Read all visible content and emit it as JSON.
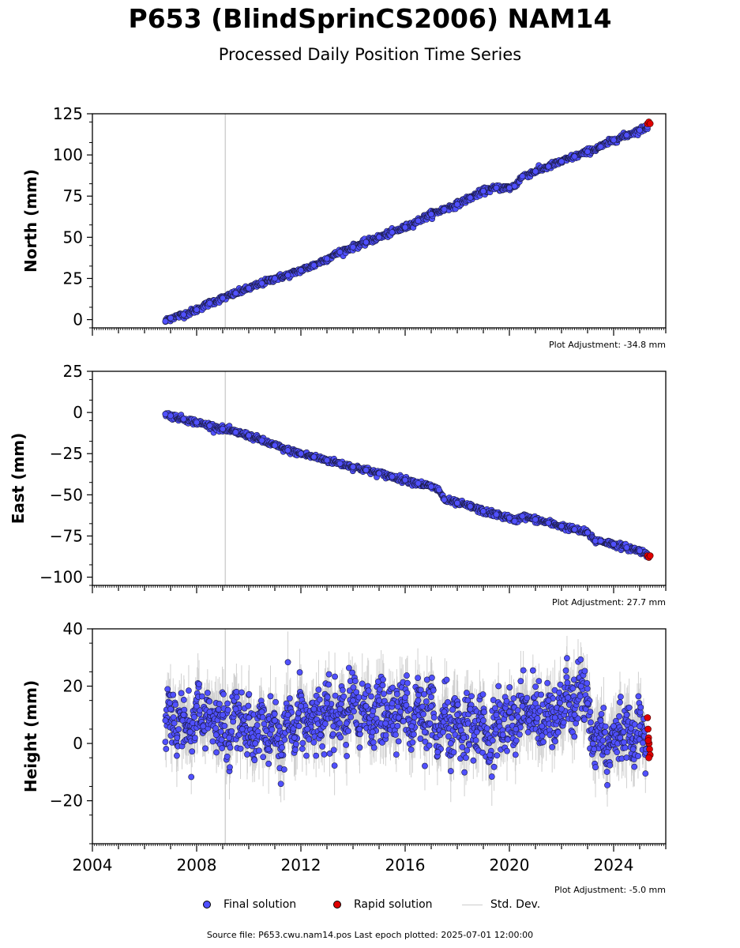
{
  "title": "P653 (BlindSprinCS2006) NAM14",
  "subtitle": "Processed Daily Position Time Series",
  "legend": {
    "final_label": "Final solution",
    "rapid_label": "Rapid solution",
    "std_label": "Std. Dev.",
    "final_color": "#5050ff",
    "rapid_color": "#e00000",
    "std_color": "#cccccc"
  },
  "source_text": "Source file: P653.cwu.nam14.pos  Last epoch plotted: 2025-07-01 12:00:00",
  "chart_data": [
    {
      "type": "scatter",
      "ylabel": "North (mm)",
      "xlim": [
        2004,
        2026
      ],
      "ylim": [
        -5,
        125
      ],
      "yticks": [
        0,
        25,
        50,
        75,
        100,
        125
      ],
      "adjustment": "Plot Adjustment: -34.8 mm",
      "vline_x": 2009.1,
      "series": [
        {
          "name": "Final solution",
          "x": [
            2006.8,
            2007.0,
            2007.5,
            2008.0,
            2008.5,
            2009.0,
            2009.5,
            2010.0,
            2010.5,
            2011.0,
            2011.5,
            2012.0,
            2012.5,
            2013.0,
            2013.5,
            2014.0,
            2014.5,
            2015.0,
            2015.5,
            2016.0,
            2016.5,
            2017.0,
            2017.5,
            2018.0,
            2018.5,
            2019.0,
            2019.5,
            2020.0,
            2020.2,
            2020.5,
            2021.0,
            2021.5,
            2022.0,
            2022.5,
            2023.0,
            2023.5,
            2024.0,
            2024.5,
            2025.0,
            2025.3
          ],
          "y": [
            -1,
            1,
            3,
            6,
            10,
            13,
            16,
            19,
            22,
            25,
            27,
            30,
            33,
            37,
            41,
            44,
            47,
            50,
            53,
            56,
            60,
            64,
            67,
            70,
            74,
            78,
            80,
            80,
            81,
            87,
            90,
            93,
            96,
            99,
            102,
            105,
            109,
            112,
            115,
            117
          ]
        },
        {
          "name": "Rapid solution",
          "x": [
            2025.3,
            2025.35,
            2025.4
          ],
          "y": [
            119,
            120,
            119
          ]
        }
      ]
    },
    {
      "type": "scatter",
      "ylabel": "East (mm)",
      "xlim": [
        2004,
        2026
      ],
      "ylim": [
        -105,
        25
      ],
      "yticks": [
        -100,
        -75,
        -50,
        -25,
        0,
        25
      ],
      "adjustment": "Plot Adjustment: 27.7 mm",
      "vline_x": 2009.1,
      "series": [
        {
          "name": "Final solution",
          "x": [
            2006.8,
            2007.0,
            2007.5,
            2008.0,
            2008.5,
            2009.0,
            2009.5,
            2010.0,
            2010.5,
            2011.0,
            2011.5,
            2012.0,
            2012.5,
            2013.0,
            2013.5,
            2014.0,
            2014.5,
            2015.0,
            2015.5,
            2016.0,
            2016.5,
            2017.0,
            2017.3,
            2017.5,
            2018.0,
            2018.5,
            2019.0,
            2019.5,
            2020.0,
            2020.2,
            2020.5,
            2021.0,
            2021.5,
            2022.0,
            2022.5,
            2023.0,
            2023.3,
            2023.5,
            2024.0,
            2024.5,
            2025.0,
            2025.3
          ],
          "y": [
            -1,
            -2,
            -4,
            -6,
            -8,
            -10,
            -12,
            -14,
            -17,
            -20,
            -23,
            -25,
            -27,
            -29,
            -31,
            -33,
            -35,
            -37,
            -39,
            -41,
            -43,
            -45,
            -47,
            -53,
            -55,
            -57,
            -60,
            -62,
            -64,
            -66,
            -63,
            -65,
            -67,
            -69,
            -71,
            -73,
            -78,
            -78,
            -80,
            -82,
            -84,
            -86
          ]
        },
        {
          "name": "Rapid solution",
          "x": [
            2025.3,
            2025.35,
            2025.4
          ],
          "y": [
            -87,
            -88,
            -87
          ]
        }
      ]
    },
    {
      "type": "scatter",
      "ylabel": "Height (mm)",
      "xlim": [
        2004,
        2026
      ],
      "ylim": [
        -35,
        40
      ],
      "yticks": [
        -20,
        0,
        20,
        40
      ],
      "xticks": [
        2004,
        2008,
        2012,
        2016,
        2020,
        2024
      ],
      "adjustment": "Plot Adjustment: -5.0 mm",
      "vline_x": 2009.1,
      "series": [
        {
          "name": "Final solution",
          "x": [
            2006.8,
            2007.0,
            2007.25,
            2007.5,
            2007.75,
            2008.0,
            2008.25,
            2008.5,
            2008.75,
            2009.0,
            2009.25,
            2009.5,
            2009.75,
            2010.0,
            2010.25,
            2010.5,
            2010.75,
            2011.0,
            2011.25,
            2011.5,
            2011.75,
            2012.0,
            2012.25,
            2012.5,
            2012.75,
            2013.0,
            2013.25,
            2013.5,
            2013.75,
            2014.0,
            2014.25,
            2014.5,
            2014.75,
            2015.0,
            2015.25,
            2015.5,
            2015.75,
            2016.0,
            2016.25,
            2016.5,
            2016.75,
            2017.0,
            2017.25,
            2017.5,
            2017.75,
            2018.0,
            2018.25,
            2018.5,
            2018.75,
            2019.0,
            2019.25,
            2019.5,
            2019.75,
            2020.0,
            2020.25,
            2020.5,
            2020.75,
            2021.0,
            2021.25,
            2021.5,
            2021.75,
            2022.0,
            2022.25,
            2022.5,
            2022.75,
            2023.0,
            2023.25,
            2023.5,
            2023.75,
            2024.0,
            2024.25,
            2024.5,
            2024.75,
            2025.0,
            2025.25
          ],
          "y": [
            8,
            12,
            2,
            10,
            4,
            13,
            6,
            11,
            3,
            10,
            2,
            12,
            5,
            9,
            0,
            11,
            -2,
            8,
            -4,
            10,
            2,
            13,
            5,
            12,
            3,
            14,
            6,
            12,
            7,
            15,
            5,
            13,
            4,
            15,
            7,
            14,
            9,
            16,
            6,
            15,
            4,
            13,
            -3,
            11,
            0,
            10,
            2,
            12,
            4,
            8,
            -4,
            10,
            3,
            11,
            5,
            13,
            8,
            14,
            6,
            15,
            9,
            12,
            16,
            10,
            20,
            14,
            -2,
            8,
            -3,
            6,
            2,
            10,
            -2,
            6,
            -2
          ]
        },
        {
          "name": "Rapid solution",
          "x": [
            2025.3,
            2025.32,
            2025.34,
            2025.36,
            2025.38,
            2025.4,
            2025.35,
            2025.33
          ],
          "y": [
            9,
            5,
            2,
            0,
            -2,
            -4,
            -5,
            1
          ]
        }
      ]
    }
  ]
}
